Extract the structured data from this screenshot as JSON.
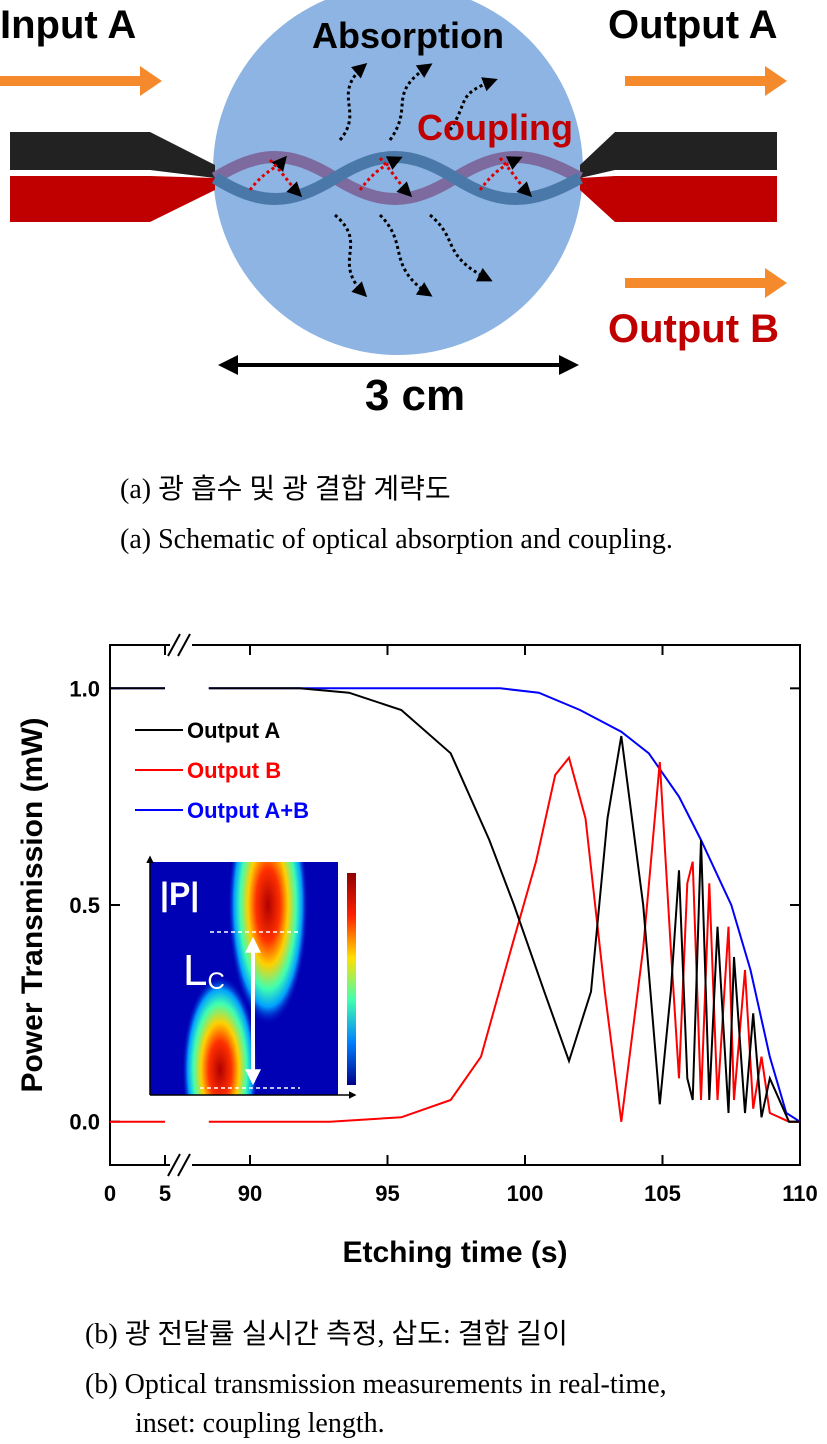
{
  "diagram": {
    "input_a": "Input A",
    "absorption": "Absorption",
    "output_a": "Output A",
    "coupling": "Coupling",
    "output_b": "Output B",
    "length": "3 cm"
  },
  "caption_a": [
    "(a) 광 흡수 및 광 결합 계략도",
    "(a) Schematic of optical absorption and coupling."
  ],
  "chart_data": {
    "type": "line",
    "xlabel": "Etching time (s)",
    "ylabel": "Power Transmission (mW)",
    "xlim": [
      0,
      110
    ],
    "x_break": [
      5,
      88
    ],
    "xticks": [
      0,
      5,
      90,
      95,
      100,
      105,
      110
    ],
    "ylim": [
      -0.1,
      1.1
    ],
    "yticks": [
      {
        "value": 0,
        "label": "0.0"
      },
      {
        "value": 0.5,
        "label": "0.5"
      },
      {
        "value": 1,
        "label": "1.0"
      }
    ],
    "legend": "upper left",
    "series": [
      {
        "name": "Output A",
        "color": "#000000",
        "x": [
          0,
          5,
          88,
          88.5,
          91.8,
          93.6,
          95.5,
          97.3,
          98.7,
          99.6,
          100.7,
          101.6,
          102.4,
          103.0,
          103.5,
          104.3,
          104.9,
          105.3,
          105.6,
          105.9,
          106.1,
          106.4,
          106.7,
          107.0,
          107.4,
          107.6,
          108.0,
          108.3,
          108.6,
          108.9,
          109.6,
          110
        ],
        "values": [
          1,
          1,
          null,
          1,
          1,
          0.99,
          0.95,
          0.85,
          0.65,
          0.5,
          0.3,
          0.14,
          0.3,
          0.7,
          0.89,
          0.5,
          0.04,
          0.3,
          0.58,
          0.1,
          0.05,
          0.65,
          0.05,
          0.45,
          0.02,
          0.38,
          0.02,
          0.25,
          0.01,
          0.1,
          0,
          0
        ]
      },
      {
        "name": "Output B",
        "color": "#ff0000",
        "x": [
          0,
          5,
          88,
          88.5,
          92.9,
          95.5,
          97.3,
          98.4,
          99.5,
          100.4,
          101.1,
          101.6,
          102.2,
          102.9,
          103.5,
          104.3,
          104.9,
          105.3,
          105.6,
          105.9,
          106.1,
          106.4,
          106.7,
          107.0,
          107.4,
          107.6,
          108.0,
          108.3,
          108.6,
          108.9,
          109.6,
          110
        ],
        "values": [
          0,
          0,
          null,
          0,
          0,
          0.01,
          0.05,
          0.15,
          0.4,
          0.6,
          0.8,
          0.84,
          0.7,
          0.3,
          0,
          0.4,
          0.83,
          0.4,
          0.1,
          0.55,
          0.6,
          0.05,
          0.55,
          0.05,
          0.45,
          0.05,
          0.35,
          0.03,
          0.15,
          0.02,
          0,
          0
        ]
      },
      {
        "name": "Output A+B",
        "color": "#0000ff",
        "x": [
          0,
          5,
          88,
          88.5,
          99.1,
          100.5,
          102.0,
          103.5,
          104.5,
          105.6,
          106.4,
          107.5,
          108.2,
          108.9,
          109.5,
          110
        ],
        "values": [
          1,
          1,
          null,
          1,
          1,
          0.99,
          0.95,
          0.9,
          0.85,
          0.75,
          0.65,
          0.5,
          0.35,
          0.15,
          0.02,
          0
        ]
      }
    ]
  },
  "inset": {
    "label": "|P|",
    "length_label": "L",
    "length_sub": "C"
  },
  "caption_b": [
    "(b) 광 전달률 실시간 측정, 삽도: 결합 길이",
    "(b) Optical transmission measurements in real-time,",
    "inset: coupling length."
  ]
}
